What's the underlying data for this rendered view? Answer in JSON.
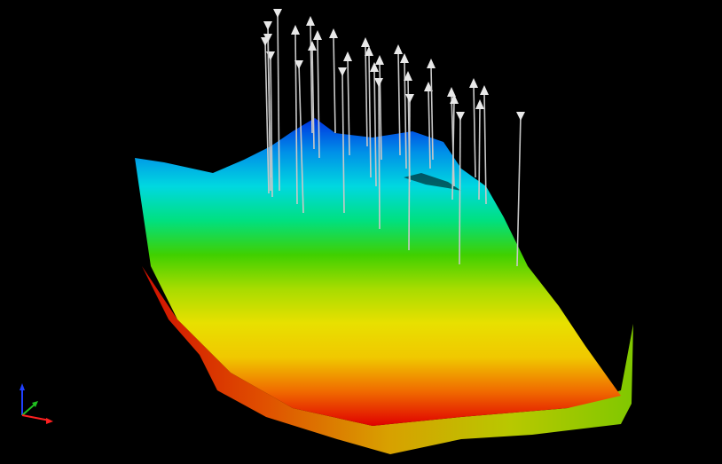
{
  "viewport": {
    "background": "#000000"
  },
  "surface": {
    "colormap": [
      "#e00000",
      "#f06a00",
      "#f0c800",
      "#e8e000",
      "#a8dc00",
      "#40d000",
      "#00e080",
      "#00d8e0",
      "#0090e8",
      "#0030e0"
    ],
    "side_wall_colors": [
      "#d01000",
      "#e05000",
      "#d8a000",
      "#b8c800",
      "#80c800"
    ]
  },
  "wells": {
    "count": 31,
    "stick_color": "#c8c8c8",
    "marker_color": "#e8e8e8",
    "producer_marker": "arrow-up",
    "injector_marker": "arrow-down"
  },
  "axes": {
    "x_color": "#ff2020",
    "y_color": "#20c020",
    "z_color": "#2040ff"
  }
}
